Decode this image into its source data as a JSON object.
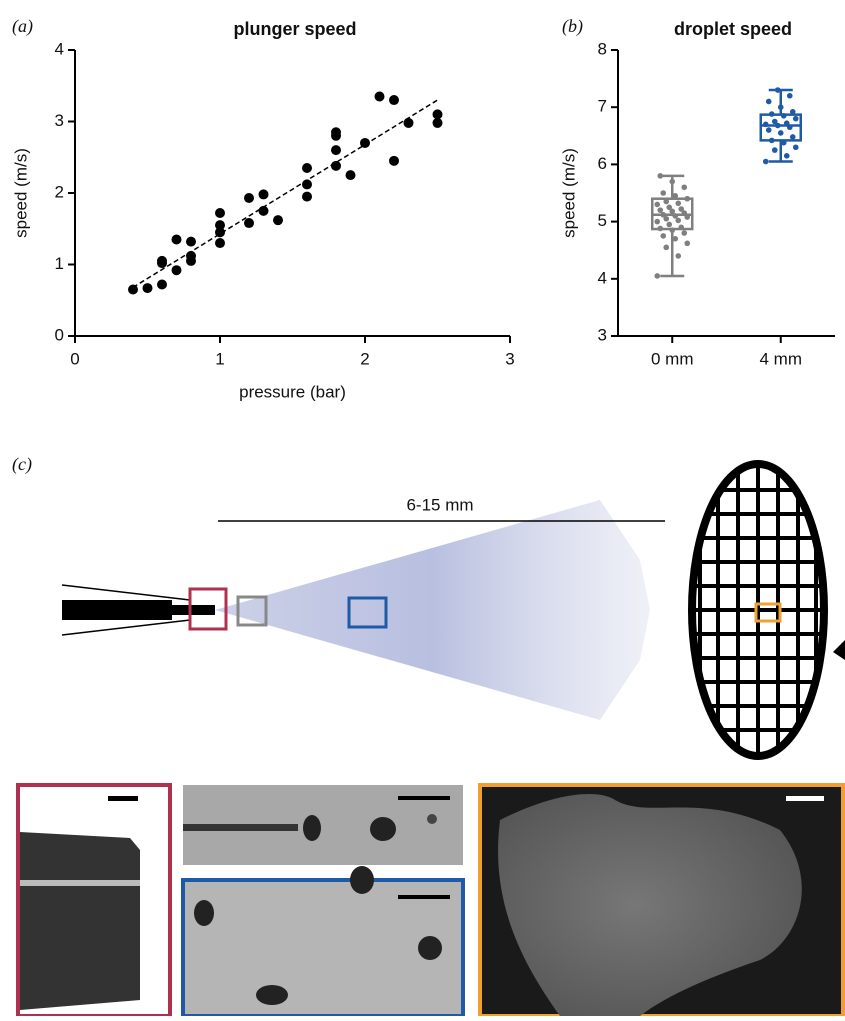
{
  "chart_data": [
    {
      "type": "scatter",
      "panel_label": "(a)",
      "title": "plunger speed",
      "x_label": "pressure (bar)",
      "y_label": "speed (m/s)",
      "xlim": [
        0,
        3
      ],
      "ylim": [
        0,
        4
      ],
      "xticks": [
        0,
        1,
        2,
        3
      ],
      "yticks": [
        0,
        1,
        2,
        3,
        4
      ],
      "color": "#000000",
      "x": [
        0.4,
        0.5,
        0.6,
        0.6,
        0.6,
        0.7,
        0.7,
        0.8,
        0.8,
        0.8,
        1.0,
        1.0,
        1.0,
        1.0,
        1.2,
        1.2,
        1.3,
        1.3,
        1.4,
        1.6,
        1.6,
        1.6,
        1.8,
        1.8,
        1.8,
        1.8,
        1.9,
        2.0,
        2.1,
        2.2,
        2.2,
        2.3,
        2.5,
        2.5
      ],
      "values": [
        0.65,
        0.67,
        0.72,
        1.02,
        1.05,
        0.92,
        1.35,
        1.05,
        1.12,
        1.32,
        1.3,
        1.45,
        1.55,
        1.72,
        1.58,
        1.93,
        1.75,
        1.98,
        1.62,
        1.95,
        2.12,
        2.35,
        2.38,
        2.6,
        2.8,
        2.85,
        2.25,
        2.7,
        3.35,
        3.3,
        2.45,
        2.98,
        2.98,
        3.1
      ],
      "fit": {
        "x": [
          0.4,
          2.5
        ],
        "values": [
          0.68,
          3.3
        ]
      }
    },
    {
      "type": "box",
      "panel_label": "(b)",
      "title": "droplet speed",
      "y_label": "speed (m/s)",
      "categories": [
        "0 mm",
        "4 mm"
      ],
      "ylim": [
        3,
        8
      ],
      "yticks": [
        3,
        4,
        5,
        6,
        7,
        8
      ],
      "boxes": [
        {
          "color": "#7f7f7f",
          "min": 4.05,
          "q1": 4.87,
          "median": 5.12,
          "q3": 5.4,
          "max": 5.8,
          "points": [
            4.05,
            4.4,
            4.55,
            4.62,
            4.7,
            4.75,
            4.8,
            4.85,
            4.88,
            4.9,
            4.95,
            5.0,
            5.02,
            5.05,
            5.08,
            5.1,
            5.12,
            5.15,
            5.18,
            5.2,
            5.22,
            5.25,
            5.3,
            5.32,
            5.35,
            5.4,
            5.45,
            5.5,
            5.6,
            5.7,
            5.8
          ]
        },
        {
          "color": "#1f5aa6",
          "min": 6.05,
          "q1": 6.42,
          "median": 6.68,
          "q3": 6.87,
          "max": 7.3,
          "points": [
            6.05,
            6.15,
            6.25,
            6.3,
            6.38,
            6.42,
            6.48,
            6.55,
            6.6,
            6.65,
            6.68,
            6.7,
            6.72,
            6.75,
            6.8,
            6.85,
            6.88,
            6.92,
            7.0,
            7.1,
            7.2,
            7.3
          ]
        }
      ]
    }
  ],
  "diagram": {
    "panel_label": "(c)",
    "distance": "6-15 mm"
  }
}
